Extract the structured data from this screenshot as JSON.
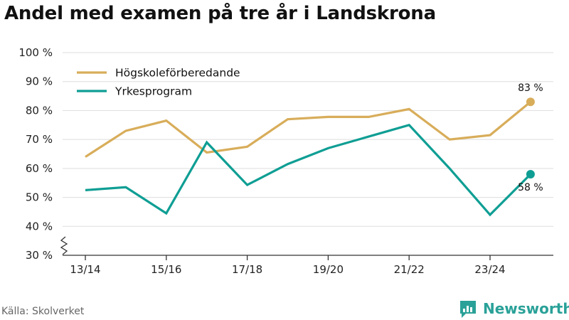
{
  "title": "Andel med examen på tre år i Landskrona",
  "source": "Källa: Skolverket",
  "brand": "Newsworthy",
  "colors": {
    "hogskole": "#d8ad5a",
    "yrkes": "#0f9e94",
    "brand": "#2aa198"
  },
  "chart_data": {
    "type": "line",
    "title": "Andel med examen på tre år i Landskrona",
    "xlabel": "",
    "ylabel": "",
    "x": [
      "13/14",
      "14/15",
      "15/16",
      "16/17",
      "17/18",
      "18/19",
      "19/20",
      "20/21",
      "21/22",
      "22/23",
      "23/24",
      "24/25"
    ],
    "x_tick_labels": [
      "13/14",
      "15/16",
      "17/18",
      "19/20",
      "21/22",
      "23/24"
    ],
    "ylim": [
      30,
      100
    ],
    "y_ticks": [
      30,
      40,
      50,
      60,
      70,
      80,
      90,
      100
    ],
    "y_tick_labels": [
      "30 %",
      "40 %",
      "50 %",
      "60 %",
      "70 %",
      "80 %",
      "90 %",
      "100 %"
    ],
    "grid": true,
    "legend_position": "top-left",
    "series": [
      {
        "name": "Högskoleförberedande",
        "color": "#d8ad5a",
        "values": [
          64,
          73,
          76.5,
          65.5,
          67.5,
          77,
          77.8,
          77.8,
          80.5,
          70,
          71.5,
          83
        ],
        "end_label": "83 %"
      },
      {
        "name": "Yrkesprogram",
        "color": "#0f9e94",
        "values": [
          52.5,
          53.5,
          44.5,
          69,
          54.3,
          61.5,
          67,
          71,
          75,
          60,
          44,
          58
        ],
        "end_label": "58 %"
      }
    ]
  }
}
